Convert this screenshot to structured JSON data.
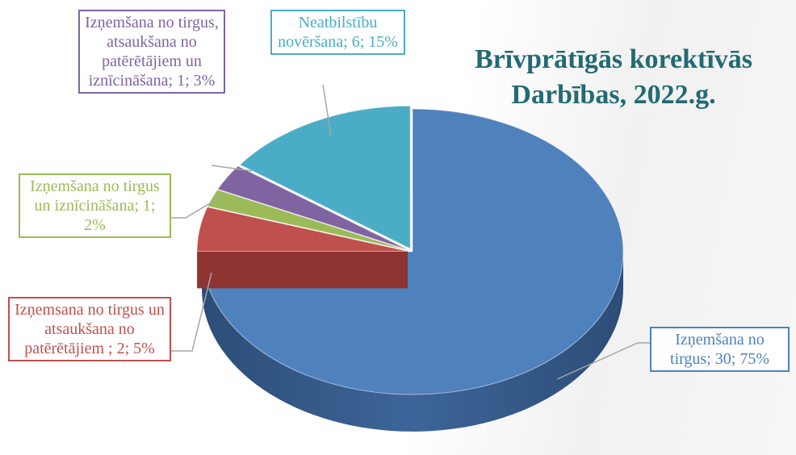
{
  "chart_data": {
    "type": "pie3d",
    "title": "Brīvprātīgās korektīvās Darbības, 2022.g.",
    "categories": [
      "Izņemšana no tirgus",
      "Izņemsana no tirgus un atsaukšana no patērētājiem",
      "Izņemšana no tirgus un iznīcināšana",
      "Izņemšana no tirgus, atsaukšana no patērētājiem un iznīcināšana",
      "Neatbilstību novēršana"
    ],
    "values": [
      30,
      2,
      1,
      1,
      6
    ],
    "percents": [
      75,
      5,
      2,
      3,
      15
    ],
    "value_labels": [
      "Izņemšana no tirgus; 30; 75%",
      "Izņemsana no tirgus un atsaukšana no patērētājiem ; 2; 5%",
      "Izņemšana no tirgus un iznīcināšana; 1; 2%",
      "Izņemšana no tirgus, atsaukšana no patērētājiem un iznīcināšana; 1; 3%",
      "Neatbilstību novēršana; 6; 15%"
    ],
    "colors": [
      "#4f81bd",
      "#c0504d",
      "#9bbb59",
      "#8064a2",
      "#4bacc6"
    ]
  }
}
